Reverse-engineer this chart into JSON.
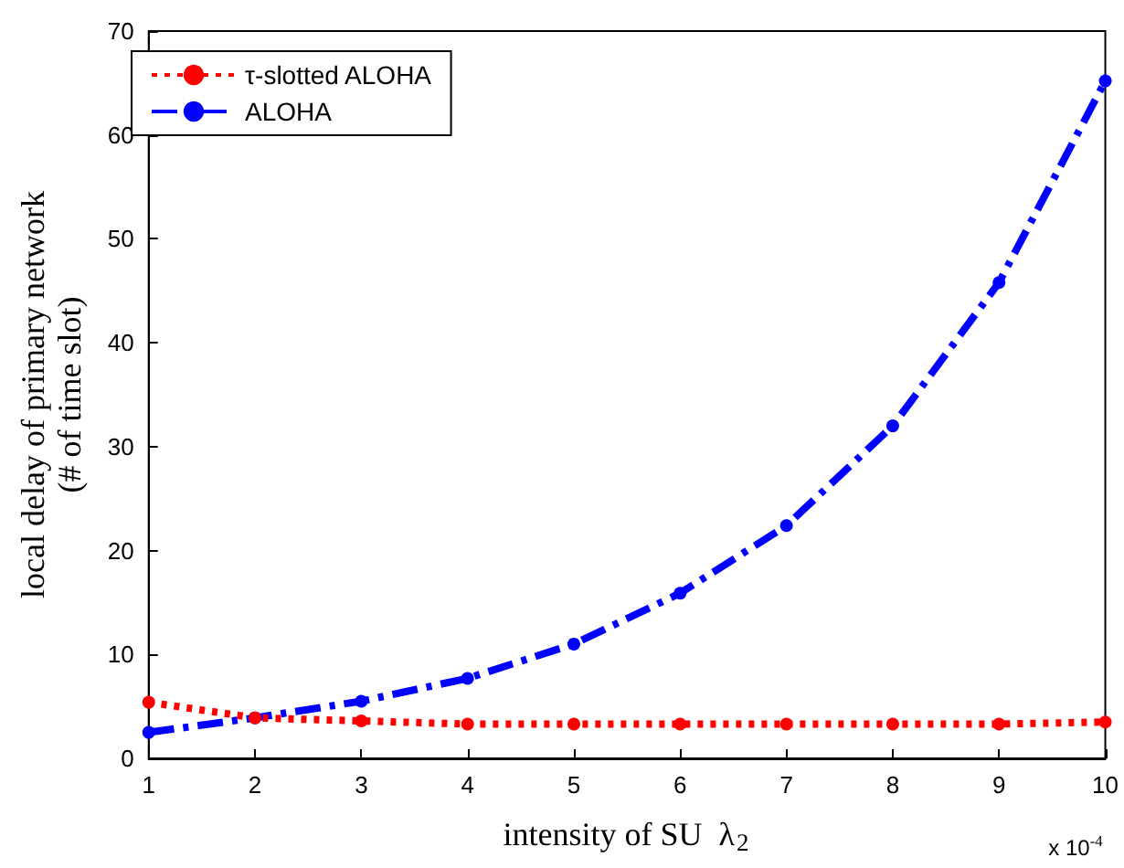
{
  "chart_data": {
    "type": "line",
    "xlabel": "intensity of SU  λ$_{2}$",
    "ylabel": "local delay of primary network\n(# of time slot)",
    "x": [
      1,
      2,
      3,
      4,
      5,
      6,
      7,
      8,
      9,
      10
    ],
    "series": [
      {
        "name": "τ-slotted ALOHA",
        "color": "#ff0000",
        "line_style": "dotted",
        "values": [
          5.4,
          3.9,
          3.6,
          3.3,
          3.3,
          3.3,
          3.3,
          3.3,
          3.3,
          3.5
        ]
      },
      {
        "name": "ALOHA",
        "color": "#0000ff",
        "line_style": "dashed",
        "values": [
          2.5,
          3.9,
          5.5,
          7.7,
          11,
          15.9,
          22.4,
          32,
          45.8,
          65.2
        ]
      }
    ],
    "xlim": [
      1,
      10
    ],
    "xticks": [
      1,
      2,
      3,
      4,
      5,
      6,
      7,
      8,
      9,
      10
    ],
    "ylim": [
      0,
      70
    ],
    "yticks": [
      0,
      10,
      20,
      30,
      40,
      50,
      60,
      70
    ],
    "annotations": [
      "x 10$^{-4}$"
    ],
    "legend": "top left",
    "marker": "circle",
    "grid": false
  }
}
